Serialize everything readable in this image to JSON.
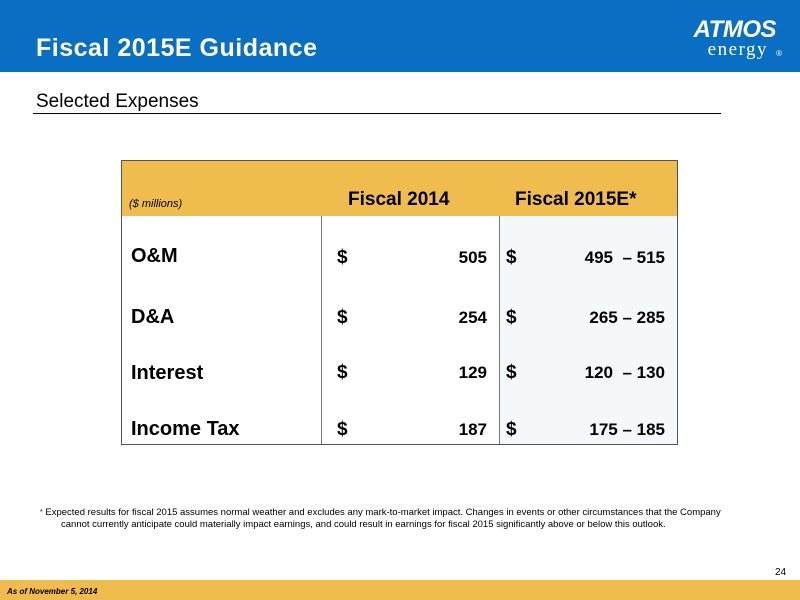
{
  "header": {
    "title": "Fiscal 2015E Guidance",
    "logo": {
      "brand": "ATMOS",
      "tagline": "energy",
      "mark": "®"
    }
  },
  "subtitle": "Selected Expenses",
  "table": {
    "unit_label": "($ millions)",
    "col_fiscal2014": "Fiscal 2014",
    "col_fiscal2015e": "Fiscal 2015E*",
    "currency": "$",
    "rows": [
      {
        "label": "O&M",
        "fiscal2014": "505",
        "fiscal2015e": "495  – 515"
      },
      {
        "label": "D&A",
        "fiscal2014": "254",
        "fiscal2015e": "265 – 285"
      },
      {
        "label": "Interest",
        "fiscal2014": "129",
        "fiscal2015e": "120  – 130"
      },
      {
        "label": "Income Tax",
        "fiscal2014": "187",
        "fiscal2015e": "175 – 185"
      }
    ]
  },
  "footnote": {
    "marker": "*",
    "line1": "Expected results for fiscal 2015 assumes normal weather and excludes any mark-to-market impact. Changes in events or other circumstances that the Company",
    "line2": "cannot currently anticipate could materially impact earnings, and could result in  earnings for fiscal 2015 significantly above or below this outlook."
  },
  "page_number": "24",
  "footer": {
    "date_note": "As of November 5, 2014"
  },
  "colors": {
    "header_blue": "#0a6fc2",
    "accent_gold": "#efbc4d"
  }
}
